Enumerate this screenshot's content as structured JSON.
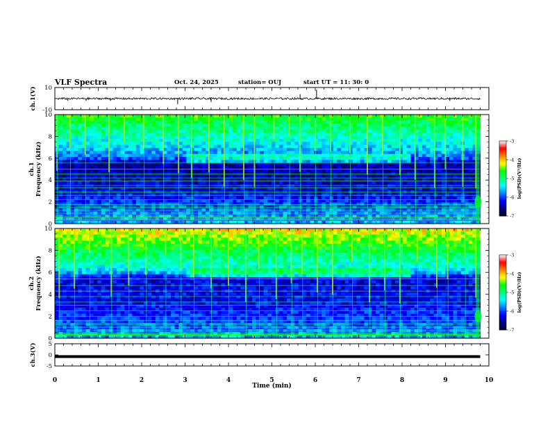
{
  "header": {
    "title": "VLF Spectra",
    "date": "Oct. 24, 2025",
    "station": "station= OUJ",
    "start_ut": "start  UT  =   11: 30: 0"
  },
  "colors": {
    "colormap": [
      "#000033",
      "#000080",
      "#0000ff",
      "#0080ff",
      "#00ffff",
      "#00ff80",
      "#00ff00",
      "#ffff00",
      "#ff8000",
      "#ff0000",
      "#ffffff"
    ],
    "trace": "#000000"
  },
  "chart_data": [
    {
      "id": "ch1-waveform",
      "type": "line",
      "ylabel": "ch.1(V)",
      "ylim": [
        -10,
        10
      ],
      "yticks": [
        "10",
        "-10"
      ],
      "xlim": [
        0,
        10
      ],
      "baseline": 0,
      "spikes": [
        {
          "x": 0.3,
          "y": -2
        },
        {
          "x": 0.72,
          "y": -2
        },
        {
          "x": 1.28,
          "y": -2
        },
        {
          "x": 2.83,
          "y": -5
        },
        {
          "x": 3.6,
          "y": -3
        },
        {
          "x": 5.65,
          "y": 4
        },
        {
          "x": 6.03,
          "y": 8
        },
        {
          "x": 9.1,
          "y": -2
        }
      ]
    },
    {
      "id": "ch1-spectrogram",
      "type": "heatmap",
      "ylabel": "ch.1\nFrequency (kHz)",
      "ylim": [
        0,
        10
      ],
      "yticks": [
        "0",
        "2",
        "4",
        "6",
        "8",
        "10"
      ],
      "xlim": [
        0,
        9.8
      ],
      "colorbar": {
        "label": "log(PSD)(V²/Hz)",
        "range": [
          -7,
          -3
        ],
        "ticks": [
          "-3",
          "-4",
          "-5",
          "-6",
          "-7"
        ]
      },
      "band_level": [
        {
          "f": 10,
          "v": -4.6
        },
        {
          "f": 7,
          "v": -5.5
        },
        {
          "f": 6,
          "v": -5.9
        },
        {
          "f": 5.5,
          "v": -6.5
        },
        {
          "f": 3,
          "v": -6.3
        },
        {
          "f": 1,
          "v": -5.8
        },
        {
          "f": 0,
          "v": -5.6
        }
      ],
      "mid_band_kHz": 6.0,
      "lines_kHz": [
        0.4,
        0.6,
        0.95,
        1.2,
        1.5,
        1.75,
        2.2,
        2.6,
        2.9,
        3.3,
        3.5,
        3.9,
        4.2,
        4.55,
        5.0,
        5.6
      ],
      "events_min": [
        0.05,
        0.35,
        0.7,
        1.25,
        1.6,
        2.05,
        2.5,
        2.85,
        3.15,
        3.55,
        3.9,
        4.35,
        4.6,
        5.05,
        5.4,
        5.65,
        6.0,
        6.35,
        6.8,
        7.2,
        7.55,
        7.95,
        8.3,
        8.75,
        9.0,
        9.4,
        9.7
      ],
      "burst": {
        "t_min": 9.75,
        "f_kHz": 2.0
      }
    },
    {
      "id": "ch2-spectrogram",
      "type": "heatmap",
      "ylabel": "ch.2\nFrequency (kHz)",
      "ylim": [
        0,
        10
      ],
      "yticks": [
        "0",
        "2",
        "4",
        "6",
        "8",
        "10"
      ],
      "xlim": [
        0,
        9.8
      ],
      "colorbar": {
        "label": "log(PSD)(V²/Hz)",
        "range": [
          -7,
          -3
        ],
        "ticks": [
          "-3",
          "-4",
          "-5",
          "-6",
          "-7"
        ]
      },
      "band_level": [
        {
          "f": 10,
          "v": -4.1
        },
        {
          "f": 8,
          "v": -4.8
        },
        {
          "f": 6.5,
          "v": -5.3
        },
        {
          "f": 6,
          "v": -5.6
        },
        {
          "f": 5.5,
          "v": -6.3
        },
        {
          "f": 3,
          "v": -6.2
        },
        {
          "f": 1,
          "v": -5.9
        },
        {
          "f": 0,
          "v": -5.6
        }
      ],
      "mid_band_kHz": 6.0,
      "lines_kHz": [
        0.4,
        0.7,
        1.0,
        1.3,
        1.6,
        2.0,
        2.5,
        3.0,
        3.3,
        3.8,
        4.3,
        4.8,
        5.4
      ],
      "events_min": [
        0.1,
        0.45,
        0.8,
        1.3,
        1.7,
        2.1,
        2.55,
        2.9,
        3.2,
        3.6,
        4.0,
        4.4,
        4.7,
        5.1,
        5.45,
        5.7,
        6.05,
        6.4,
        6.85,
        7.25,
        7.6,
        7.95,
        8.35,
        8.8,
        9.05,
        9.45,
        9.7
      ],
      "burst": {
        "t_min": 9.75,
        "f_kHz": 2.0
      }
    },
    {
      "id": "ch3-waveform",
      "type": "line",
      "ylabel": "ch.3(V)",
      "ylim": [
        -5,
        5
      ],
      "yticks": [
        "5",
        "0",
        "-5"
      ],
      "xlim": [
        0,
        9.8
      ],
      "baseline": -0.8,
      "xlabel": "Time (min)",
      "xticks": [
        "0",
        "1",
        "2",
        "3",
        "4",
        "5",
        "6",
        "7",
        "8",
        "9",
        "10"
      ],
      "xrange": [
        0,
        10
      ]
    }
  ]
}
